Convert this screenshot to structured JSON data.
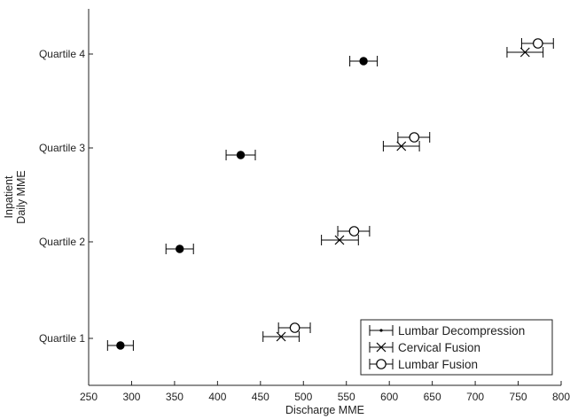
{
  "chart_data": {
    "type": "scatter",
    "orientation": "horizontal-errorbar",
    "xlabel": "Discharge MME",
    "ylabel_lines": [
      "Inpatient",
      "Daily MME"
    ],
    "xlim": [
      250,
      800
    ],
    "xticks": [
      250,
      300,
      350,
      400,
      450,
      500,
      550,
      600,
      650,
      700,
      750,
      800
    ],
    "categories": [
      "Quartile 1",
      "Quartile 2",
      "Quartile 3",
      "Quartile 4"
    ],
    "grid": false,
    "legend_position": "bottom-right",
    "series": [
      {
        "name": "Lumbar Decompression",
        "marker": "filled-circle",
        "values": [
          287,
          356,
          427,
          570
        ],
        "err_low": [
          272,
          340,
          410,
          554
        ],
        "err_high": [
          302,
          372,
          444,
          586
        ]
      },
      {
        "name": "Cervical Fusion",
        "marker": "x",
        "values": [
          474,
          542,
          614,
          758
        ],
        "err_low": [
          453,
          521,
          593,
          737
        ],
        "err_high": [
          495,
          564,
          635,
          779
        ]
      },
      {
        "name": "Lumbar Fusion",
        "marker": "open-circle",
        "values": [
          490,
          559,
          629,
          773
        ],
        "err_low": [
          471,
          540,
          610,
          754
        ],
        "err_high": [
          508,
          577,
          647,
          791
        ]
      }
    ]
  }
}
